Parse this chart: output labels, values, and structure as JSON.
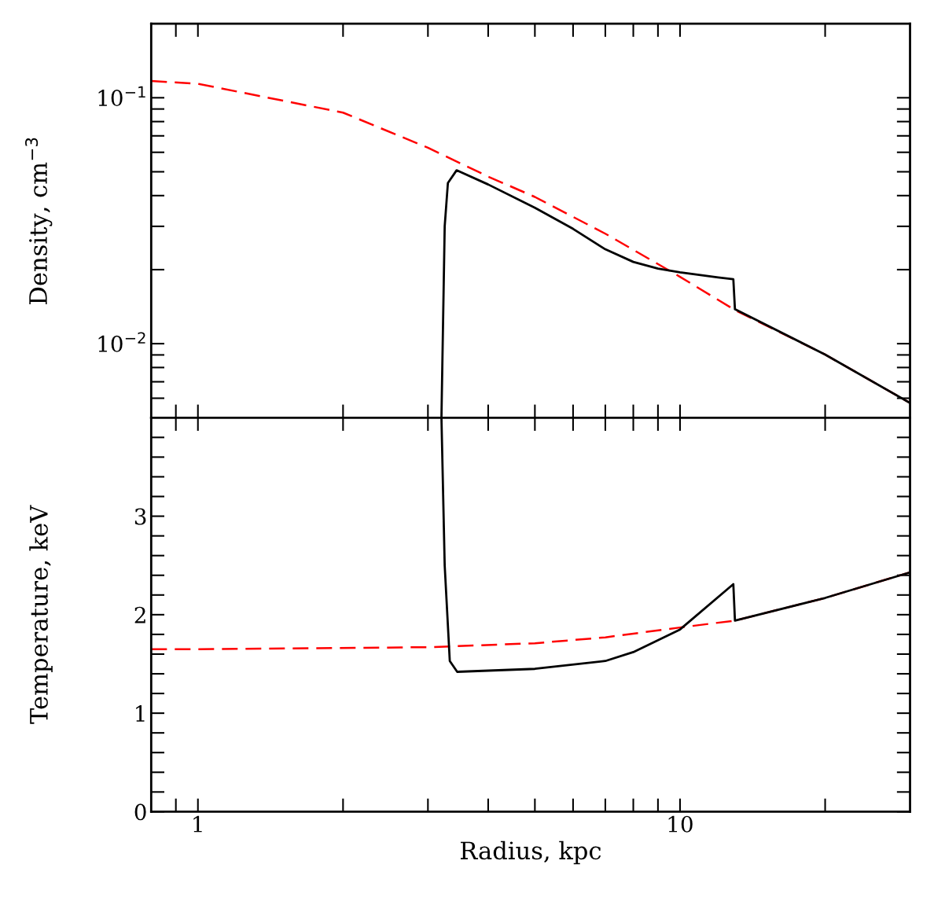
{
  "chart_data": [
    {
      "type": "line",
      "ylabel": "Density, cm$^{−3}$",
      "log": "xy",
      "xlim": [
        0.8,
        30
      ],
      "xticks": [
        1,
        10
      ],
      "ylim": [
        0.005,
        0.2
      ],
      "yticks": [
        {
          "value": 0.01,
          "label": "10$^{−2}$"
        },
        {
          "value": 0.1,
          "label": "10$^{−1}$"
        }
      ],
      "tick_labels": "y",
      "grid": false,
      "legend": false,
      "marker": "none",
      "series": [
        {
          "color": "#ff0000",
          "line_style": "dashed",
          "x": [
            0.8,
            1,
            2,
            3,
            4,
            5,
            7,
            10,
            13,
            20,
            30
          ],
          "values": [
            0.117,
            0.114,
            0.087,
            0.0626,
            0.0478,
            0.0395,
            0.028,
            0.0187,
            0.0137,
            0.00903,
            0.00574
          ]
        },
        {
          "color": "#000000",
          "line_style": "solid",
          "x": [
            3.2,
            3.25,
            3.3,
            3.44,
            4,
            5,
            6,
            7,
            8,
            9,
            10,
            12,
            12.9,
            13,
            20,
            30
          ],
          "values": [
            0.005,
            0.03,
            0.045,
            0.0507,
            0.0444,
            0.0357,
            0.0293,
            0.0242,
            0.0215,
            0.0202,
            0.0195,
            0.0186,
            0.0183,
            0.0138,
            0.00903,
            0.00574
          ]
        }
      ]
    },
    {
      "type": "line",
      "xlabel": "Radius, kpc",
      "ylabel": "Temperature, keV",
      "log": "x",
      "xlim": [
        0.8,
        30
      ],
      "xticks": [
        1,
        10
      ],
      "ylim": [
        0,
        4
      ],
      "yticks": [
        0,
        1,
        2,
        3
      ],
      "grid": false,
      "legend": false,
      "marker": "none",
      "series": [
        {
          "color": "#ff0000",
          "line_style": "dashed",
          "x": [
            0.8,
            1,
            3,
            5,
            7,
            10,
            13,
            20,
            30
          ],
          "values": [
            1.65,
            1.65,
            1.67,
            1.71,
            1.77,
            1.87,
            1.94,
            2.17,
            2.43
          ]
        },
        {
          "color": "#000000",
          "line_style": "solid",
          "x": [
            3.2,
            3.25,
            3.33,
            3.45,
            5,
            7,
            8,
            10,
            12.9,
            13,
            20,
            30
          ],
          "values": [
            4,
            2.5,
            1.53,
            1.42,
            1.45,
            1.53,
            1.62,
            1.85,
            2.31,
            1.94,
            2.17,
            2.43
          ]
        }
      ]
    }
  ]
}
